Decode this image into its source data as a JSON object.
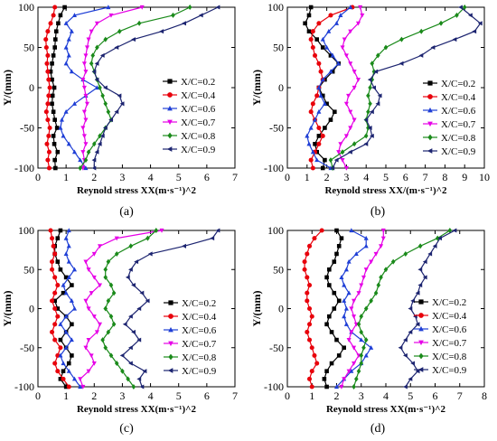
{
  "figure": {
    "panels": [
      {
        "label": "(a)",
        "xlabel": "Reynold stress XX(m·s⁻¹)^2",
        "ylabel": "Y/(mm)",
        "legend_position": "right-middle",
        "xticks": [
          0,
          1,
          2,
          3,
          4,
          5,
          6,
          7
        ],
        "yticks": [
          -100,
          -50,
          0,
          50,
          100
        ]
      },
      {
        "label": "(b)",
        "xlabel": "Reynold stress XX/(m·s⁻¹)^2",
        "ylabel": "Y/(mm)",
        "legend_position": "top-left",
        "xticks": [
          0,
          1,
          2,
          3,
          4,
          5,
          6,
          7,
          8,
          9,
          10
        ],
        "yticks": [
          -100,
          -50,
          0,
          50,
          100
        ]
      },
      {
        "label": "(c)",
        "xlabel": "Reynold stress XX(m·s⁻¹)^2",
        "ylabel": "Y/(mm)",
        "legend_position": "right-middle",
        "xticks": [
          0,
          1,
          2,
          3,
          4,
          5,
          6,
          7
        ],
        "yticks": [
          -100,
          -50,
          0,
          50,
          100
        ]
      },
      {
        "label": "(d)",
        "xlabel": "Reynold stress XX(m·s⁻¹)^2",
        "ylabel": "Y/(mm)",
        "legend_position": "right-middle",
        "xticks": [
          0,
          1,
          2,
          3,
          4,
          5,
          6,
          7,
          8
        ],
        "yticks": [
          -100,
          -50,
          0,
          50,
          100
        ]
      }
    ]
  },
  "chart_data": [
    {
      "type": "line",
      "xlabel": "Reynold stress XX(m·s⁻¹)^2",
      "ylabel": "Y/(mm)",
      "xlim": [
        0,
        7
      ],
      "ylim": [
        -100,
        100
      ],
      "y": [
        -100,
        -90,
        -80,
        -70,
        -60,
        -50,
        -40,
        -30,
        -20,
        -10,
        0,
        10,
        20,
        30,
        40,
        50,
        60,
        70,
        80,
        90,
        100
      ],
      "series": [
        {
          "name": "X/C=0.2",
          "color": "#000000",
          "marker": "square",
          "x": [
            0.62,
            0.6,
            0.7,
            0.58,
            0.55,
            0.68,
            0.6,
            0.55,
            0.5,
            0.52,
            0.58,
            0.5,
            0.45,
            0.5,
            0.55,
            0.6,
            0.62,
            0.65,
            0.72,
            0.8,
            0.95
          ]
        },
        {
          "name": "X/C=0.4",
          "color": "#e8000b",
          "marker": "circle",
          "x": [
            0.4,
            0.35,
            0.4,
            0.32,
            0.38,
            0.42,
            0.35,
            0.3,
            0.35,
            0.38,
            0.42,
            0.38,
            0.35,
            0.32,
            0.35,
            0.3,
            0.28,
            0.35,
            0.45,
            0.55,
            0.6
          ]
        },
        {
          "name": "X/C=0.6",
          "color": "#1f3fd6",
          "marker": "triangle-up",
          "x": [
            1.7,
            1.5,
            1.3,
            1.1,
            0.9,
            0.8,
            0.85,
            1.0,
            1.3,
            1.7,
            2.1,
            1.6,
            1.2,
            1.0,
            1.1,
            1.0,
            1.1,
            1.2,
            1.0,
            1.3,
            2.5
          ]
        },
        {
          "name": "X/C=0.7",
          "color": "#e600e6",
          "marker": "triangle-down",
          "x": [
            1.6,
            1.65,
            1.6,
            1.7,
            1.65,
            1.6,
            1.7,
            1.65,
            1.75,
            1.7,
            1.65,
            1.6,
            1.7,
            1.65,
            1.7,
            1.75,
            1.8,
            1.9,
            2.1,
            2.6,
            3.7
          ]
        },
        {
          "name": "X/C=0.8",
          "color": "#1a8a1a",
          "marker": "diamond",
          "x": [
            1.5,
            1.7,
            1.8,
            2.0,
            2.2,
            2.4,
            2.6,
            2.5,
            2.4,
            2.3,
            2.2,
            2.1,
            2.0,
            1.9,
            1.95,
            2.1,
            2.4,
            2.9,
            3.6,
            4.8,
            5.4
          ]
        },
        {
          "name": "X/C=0.9",
          "color": "#1c2470",
          "marker": "triangle-left",
          "x": [
            2.0,
            2.0,
            2.1,
            2.2,
            2.3,
            2.4,
            2.6,
            2.8,
            3.0,
            2.9,
            2.4,
            2.1,
            2.0,
            2.1,
            2.3,
            2.8,
            3.4,
            4.4,
            5.2,
            5.8,
            6.4
          ]
        }
      ]
    },
    {
      "type": "line",
      "xlabel": "Reynold stress XX/(m·s⁻¹)^2",
      "ylabel": "Y/(mm)",
      "xlim": [
        0,
        10
      ],
      "ylim": [
        -100,
        100
      ],
      "y": [
        -100,
        -90,
        -80,
        -70,
        -60,
        -50,
        -40,
        -30,
        -20,
        -10,
        0,
        10,
        20,
        30,
        40,
        50,
        60,
        70,
        80,
        90,
        100
      ],
      "series": [
        {
          "name": "X/C=0.2",
          "color": "#000000",
          "marker": "square",
          "x": [
            1.8,
            1.9,
            1.5,
            1.4,
            1.6,
            1.9,
            2.2,
            2.4,
            2.0,
            1.8,
            1.6,
            1.9,
            2.3,
            2.6,
            2.2,
            1.8,
            1.5,
            1.1,
            0.9,
            1.1,
            1.2
          ]
        },
        {
          "name": "X/C=0.4",
          "color": "#e8000b",
          "marker": "circle",
          "x": [
            1.3,
            1.2,
            1.4,
            1.6,
            1.8,
            1.6,
            1.4,
            1.2,
            1.3,
            1.5,
            1.6,
            1.8,
            1.7,
            1.6,
            1.4,
            1.3,
            1.2,
            1.3,
            1.6,
            2.2,
            3.3
          ]
        },
        {
          "name": "X/C=0.6",
          "color": "#1f3fd6",
          "marker": "triangle-up",
          "x": [
            2.2,
            1.5,
            1.3,
            1.1,
            1.0,
            1.2,
            1.4,
            1.6,
            1.9,
            1.7,
            1.6,
            1.8,
            2.2,
            2.6,
            2.3,
            2.0,
            1.8,
            2.1,
            2.5,
            2.7,
            3.2
          ]
        },
        {
          "name": "X/C=0.7",
          "color": "#e600e6",
          "marker": "triangle-down",
          "x": [
            3.0,
            2.8,
            2.6,
            2.7,
            3.0,
            3.2,
            3.4,
            3.2,
            3.0,
            3.1,
            3.4,
            3.6,
            3.4,
            3.2,
            3.0,
            2.8,
            2.9,
            3.2,
            3.6,
            3.8,
            3.7
          ]
        },
        {
          "name": "X/C=0.8",
          "color": "#1a8a1a",
          "marker": "diamond",
          "x": [
            2.3,
            2.2,
            2.8,
            3.4,
            4.0,
            4.1,
            4.0,
            4.1,
            4.2,
            4.1,
            4.2,
            4.3,
            4.4,
            4.3,
            4.6,
            5.0,
            5.8,
            6.8,
            7.8,
            8.6,
            9.0
          ]
        },
        {
          "name": "X/C=0.9",
          "color": "#1c2470",
          "marker": "triangle-left",
          "x": [
            2.3,
            2.5,
            3.2,
            4.0,
            4.3,
            4.2,
            4.0,
            4.3,
            4.6,
            4.7,
            4.4,
            4.2,
            4.5,
            5.8,
            6.8,
            7.4,
            8.5,
            9.5,
            9.8,
            9.3,
            8.8
          ]
        }
      ]
    },
    {
      "type": "line",
      "xlabel": "Reynold stress XX(m·s⁻¹)^2",
      "ylabel": "Y/(mm)",
      "xlim": [
        0,
        7
      ],
      "ylim": [
        -100,
        100
      ],
      "y": [
        -100,
        -90,
        -80,
        -70,
        -60,
        -50,
        -40,
        -30,
        -20,
        -10,
        0,
        10,
        20,
        30,
        40,
        50,
        60,
        70,
        80,
        90,
        100
      ],
      "series": [
        {
          "name": "X/C=0.2",
          "color": "#000000",
          "marker": "square",
          "x": [
            1.0,
            0.8,
            0.9,
            1.1,
            1.2,
            1.0,
            0.8,
            1.0,
            1.2,
            1.0,
            0.7,
            0.6,
            0.9,
            1.2,
            1.0,
            0.8,
            0.7,
            0.6,
            0.6,
            0.7,
            0.8
          ]
        },
        {
          "name": "X/C=0.4",
          "color": "#e8000b",
          "marker": "circle",
          "x": [
            1.1,
            0.9,
            0.7,
            0.6,
            0.7,
            0.8,
            0.6,
            0.5,
            0.6,
            0.7,
            0.6,
            0.5,
            0.6,
            0.7,
            0.6,
            0.5,
            0.5,
            0.6,
            0.55,
            0.5,
            0.45
          ]
        },
        {
          "name": "X/C=0.6",
          "color": "#1f3fd6",
          "marker": "triangle-up",
          "x": [
            1.5,
            1.3,
            1.1,
            0.9,
            0.8,
            1.0,
            1.2,
            1.0,
            0.8,
            1.0,
            1.3,
            1.2,
            1.0,
            0.9,
            1.1,
            1.3,
            1.1,
            1.0,
            1.1,
            1.0,
            1.1
          ]
        },
        {
          "name": "X/C=0.7",
          "color": "#e600e6",
          "marker": "triangle-down",
          "x": [
            1.6,
            1.5,
            1.8,
            2.0,
            1.9,
            1.7,
            1.8,
            2.1,
            2.2,
            2.0,
            1.8,
            1.7,
            1.9,
            2.2,
            2.0,
            1.8,
            1.7,
            2.0,
            2.2,
            2.8,
            4.4
          ]
        },
        {
          "name": "X/C=0.8",
          "color": "#1a8a1a",
          "marker": "diamond",
          "x": [
            3.4,
            3.2,
            3.0,
            2.8,
            2.6,
            2.4,
            2.3,
            2.5,
            2.7,
            2.6,
            2.4,
            2.5,
            2.7,
            2.6,
            2.4,
            2.4,
            2.5,
            2.8,
            3.3,
            3.9,
            4.2
          ]
        },
        {
          "name": "X/C=0.9",
          "color": "#1c2470",
          "marker": "triangle-left",
          "x": [
            3.7,
            3.6,
            3.8,
            3.3,
            3.0,
            3.3,
            3.6,
            3.4,
            3.1,
            3.3,
            3.6,
            3.9,
            3.7,
            3.4,
            3.2,
            3.3,
            3.5,
            4.0,
            5.2,
            6.2,
            6.4
          ]
        }
      ]
    },
    {
      "type": "line",
      "xlabel": "Reynold stress XX(m·s⁻¹)^2",
      "ylabel": "Y/(mm)",
      "xlim": [
        0,
        8
      ],
      "ylim": [
        -100,
        100
      ],
      "y": [
        -100,
        -90,
        -80,
        -70,
        -60,
        -50,
        -40,
        -30,
        -20,
        -10,
        0,
        10,
        20,
        30,
        40,
        50,
        60,
        70,
        80,
        90,
        100
      ],
      "series": [
        {
          "name": "X/C=0.2",
          "color": "#000000",
          "marker": "square",
          "x": [
            1.6,
            1.5,
            1.6,
            1.8,
            2.1,
            2.3,
            2.0,
            1.8,
            1.6,
            1.7,
            1.9,
            2.1,
            1.9,
            1.7,
            1.6,
            1.7,
            1.9,
            2.0,
            2.1,
            2.2,
            2.0
          ]
        },
        {
          "name": "X/C=0.4",
          "color": "#e8000b",
          "marker": "circle",
          "x": [
            1.0,
            0.9,
            1.0,
            1.2,
            1.1,
            1.0,
            0.9,
            0.8,
            0.9,
            1.0,
            0.9,
            0.8,
            0.8,
            0.9,
            0.8,
            0.7,
            0.7,
            0.8,
            0.9,
            1.1,
            1.4
          ]
        },
        {
          "name": "X/C=0.6",
          "color": "#1f3fd6",
          "marker": "triangle-up",
          "x": [
            2.0,
            2.3,
            2.6,
            3.0,
            3.2,
            3.4,
            3.0,
            2.6,
            2.4,
            2.3,
            2.4,
            2.3,
            2.5,
            2.3,
            2.2,
            2.4,
            2.5,
            2.8,
            3.2,
            3.2,
            2.6
          ]
        },
        {
          "name": "X/C=0.7",
          "color": "#e600e6",
          "marker": "triangle-down",
          "x": [
            2.2,
            2.3,
            2.5,
            2.7,
            2.9,
            2.7,
            2.5,
            2.6,
            2.8,
            2.7,
            2.6,
            2.7,
            2.9,
            3.0,
            3.1,
            3.2,
            3.4,
            3.6,
            3.8,
            3.9,
            3.9
          ]
        },
        {
          "name": "X/C=0.8",
          "color": "#1a8a1a",
          "marker": "diamond",
          "x": [
            2.7,
            2.8,
            2.9,
            3.0,
            3.0,
            3.1,
            3.2,
            3.0,
            2.9,
            3.0,
            3.2,
            3.4,
            3.6,
            3.7,
            3.8,
            4.0,
            4.3,
            4.8,
            5.4,
            6.1,
            6.6
          ]
        },
        {
          "name": "X/C=0.9",
          "color": "#1c2470",
          "marker": "triangle-left",
          "x": [
            4.8,
            5.0,
            5.3,
            5.1,
            4.8,
            4.6,
            4.8,
            5.0,
            5.3,
            5.2,
            5.0,
            5.1,
            5.3,
            5.4,
            5.6,
            5.4,
            5.6,
            5.8,
            6.0,
            6.2,
            6.8
          ]
        }
      ]
    }
  ]
}
